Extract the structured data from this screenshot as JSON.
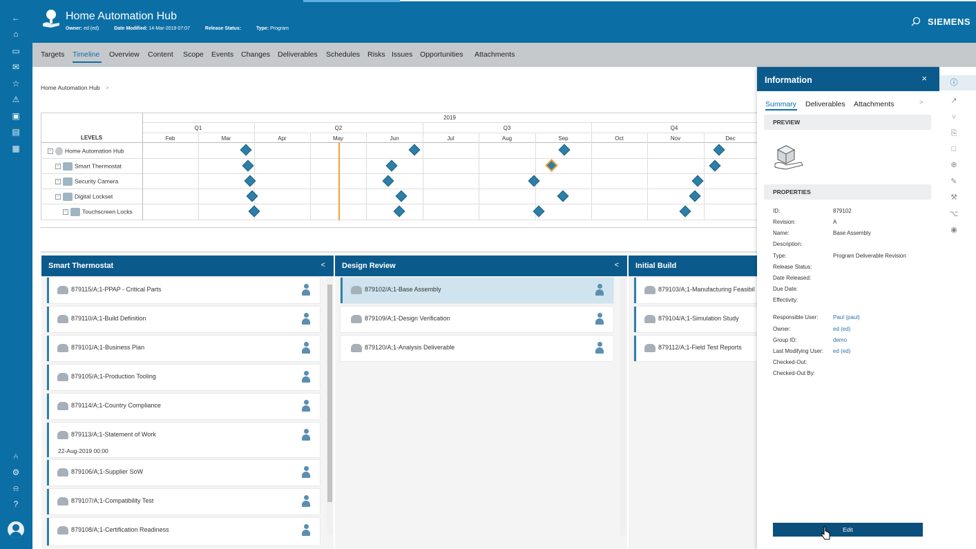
{
  "app": {
    "title": "Home Automation Hub",
    "owner_label": "Owner:",
    "owner_value": "ed (ed)",
    "date_label": "Date Modified:",
    "date_value": "14-Mar-2019 07:07",
    "release_label": "Release Status:",
    "type_label": "Type:",
    "type_value": "Program",
    "brand": "SIEMENS"
  },
  "nav_icons": [
    "back-icon",
    "home-icon",
    "folder-icon",
    "inbox-icon",
    "favorites-icon",
    "alert-icon",
    "picture-icon",
    "dashboard-icon",
    "report-icon",
    "fork-icon",
    "settings-icon",
    "notification-icon",
    "help-icon",
    "avatar"
  ],
  "tabs": [
    "Targets",
    "Timeline",
    "Overview",
    "Content",
    "Scope",
    "Events",
    "Changes",
    "Deliverables",
    "Schedules",
    "Risks",
    "Issues",
    "Opportunities",
    "Attachments"
  ],
  "active_tab": "Timeline",
  "breadcrumb": {
    "item": "Home Automation Hub",
    "sep": ">"
  },
  "timeline": {
    "year": "2019",
    "quarters": [
      "Q1",
      "Q2",
      "Q3",
      "Q4"
    ],
    "months": [
      "Feb",
      "Mar",
      "Apr",
      "May",
      "Jun",
      "Jul",
      "Aug",
      "Sep",
      "Oct",
      "Nov",
      "Dec"
    ],
    "levels_header": "LEVELS",
    "rows": [
      {
        "label": "Home Automation Hub",
        "expander": "⊟"
      },
      {
        "label": "Smart Thermostat",
        "expander": "⊟"
      },
      {
        "label": "Security Camera",
        "expander": "⊟"
      },
      {
        "label": "Digital Lockset",
        "expander": "⊟"
      },
      {
        "label": "Touchscreen Locks",
        "expander": "⊟"
      }
    ]
  },
  "columns": [
    {
      "title": "Smart Thermostat",
      "chevron": "<",
      "cards": [
        {
          "title": "879115/A;1-PPAP - Critical Parts"
        },
        {
          "title": "879110/A;1-Build Definition"
        },
        {
          "title": "879101/A;1-Business Plan"
        },
        {
          "title": "879105/A;1-Production Tooling"
        },
        {
          "title": "879114/A;1-Country Compliance"
        },
        {
          "title": "879113/A;1-Statement of Work",
          "date": "22-Aug-2019 00:00"
        },
        {
          "title": "879106/A;1-Supplier SoW"
        },
        {
          "title": "879107/A;1-Compatibility Test"
        },
        {
          "title": "879108/A;1-Certification Readiness"
        }
      ]
    },
    {
      "title": "Design Review",
      "chevron": "<",
      "cards": [
        {
          "title": "879102/A;1-Base Assembly"
        },
        {
          "title": "879109/A;1-Design Verification"
        },
        {
          "title": "879120/A;1-Analysis Deliverable"
        }
      ]
    },
    {
      "title": "Initial Build",
      "cards": [
        {
          "title": "879103/A;1-Manufacturing Feasibil"
        },
        {
          "title": "879104/A;1-Simulation Study"
        },
        {
          "title": "879112/A;1-Field Test Reports"
        }
      ]
    }
  ],
  "info_panel": {
    "title": "Information",
    "close": "×",
    "tabs": [
      "Summary",
      "Deliverables",
      "Attachments"
    ],
    "tabs_more": ">",
    "preview_label": "PREVIEW",
    "properties_label": "PROPERTIES",
    "properties": [
      {
        "label": "ID:",
        "value": "879102"
      },
      {
        "label": "Revision:",
        "value": "A"
      },
      {
        "label": "Name:",
        "value": "Base Assembly"
      },
      {
        "label": "Description:",
        "value": ""
      },
      {
        "label": "Type:",
        "value": "Program Deliverable Revision"
      },
      {
        "label": "Release Status:",
        "value": ""
      },
      {
        "label": "Date Released:",
        "value": ""
      },
      {
        "label": "Due Date:",
        "value": ""
      },
      {
        "label": "Effectivity:",
        "value": ""
      }
    ],
    "people": [
      {
        "label": "Responsible User:",
        "value": "Paul (paul)"
      },
      {
        "label": "Owner:",
        "value": "ed (ed)"
      },
      {
        "label": "Group ID:",
        "value": "demo"
      },
      {
        "label": "Last Modifying User:",
        "value": "ed (ed)"
      },
      {
        "label": "Checked-Out:",
        "value": ""
      },
      {
        "label": "Checked-Out By:",
        "value": ""
      }
    ],
    "edit_label": "Edit"
  },
  "colors": {
    "brand_blue": "#0b6fa6",
    "header_dark": "#0b5a8c",
    "milestone": "#2e7fa8",
    "today_line": "#f0a030"
  }
}
